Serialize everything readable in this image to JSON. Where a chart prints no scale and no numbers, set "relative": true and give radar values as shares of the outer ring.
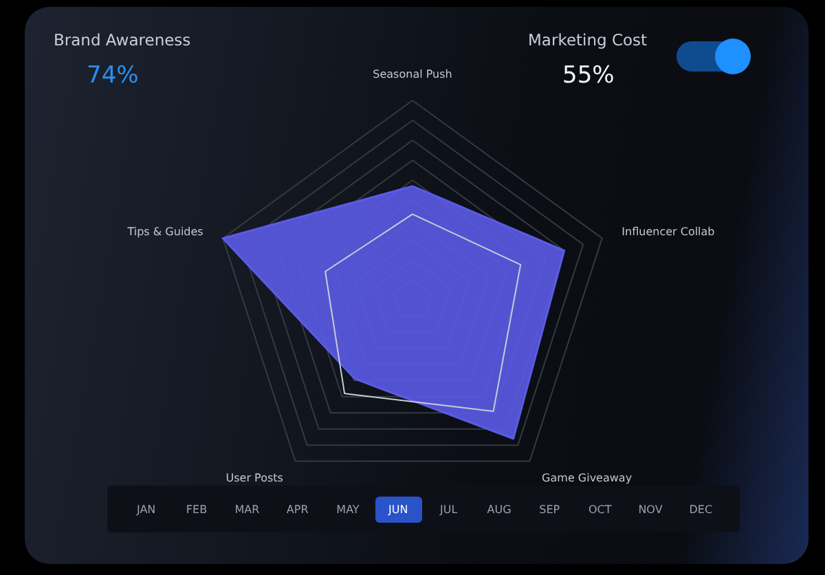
{
  "chart_data": {
    "type": "radar",
    "relative": true,
    "categories": [
      "Seasonal Push",
      "Influencer Collab",
      "Game Giveaway",
      "User Posts",
      "Tips & Guides"
    ],
    "series": [
      {
        "color": "#5b5be6",
        "values": [
          0.57,
          0.8,
          0.86,
          0.49,
          1.0
        ]
      },
      {
        "color": "#c8ccd6",
        "values": [
          0.43,
          0.57,
          0.69,
          0.58,
          0.46
        ]
      }
    ],
    "annotations": [
      "Brand Awareness",
      "74%",
      "Marketing Cost",
      "55%",
      "JAN",
      "FEB",
      "MAR",
      "APR",
      "MAY",
      "JUN",
      "JUL",
      "AUG",
      "SEP",
      "OCT",
      "NOV",
      "DEC"
    ]
  }
}
